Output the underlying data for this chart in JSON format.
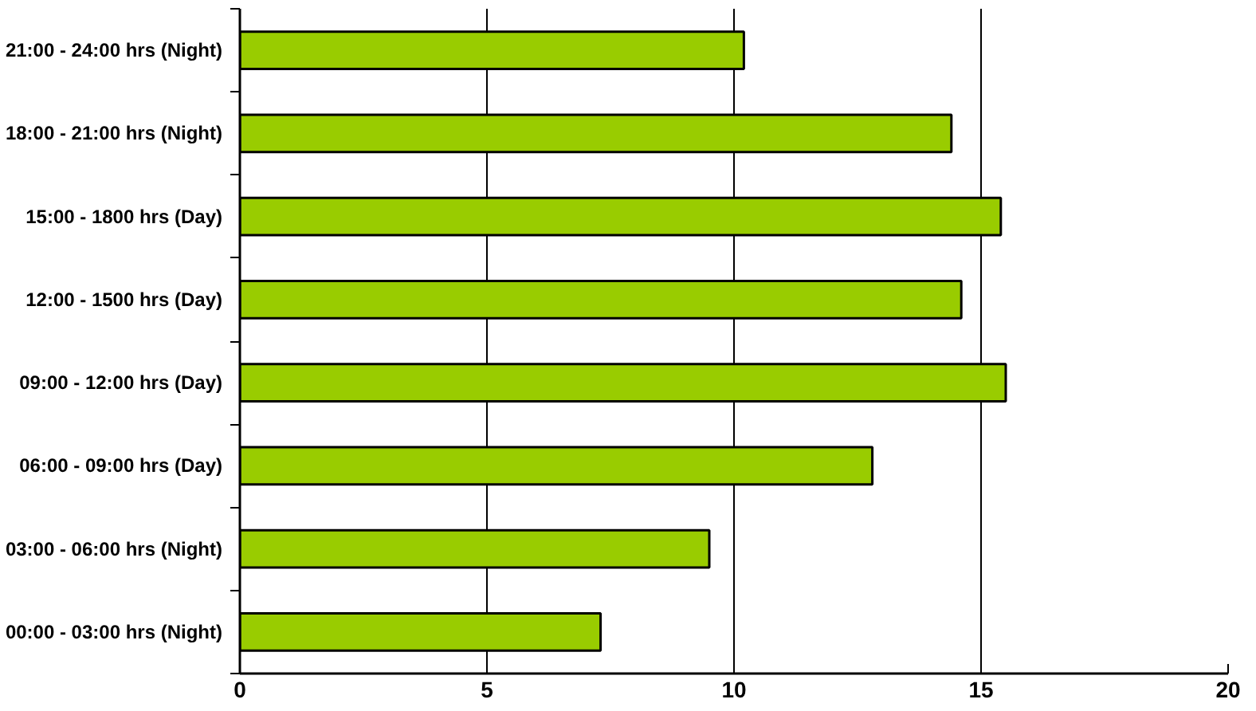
{
  "chart_data": {
    "type": "bar",
    "orientation": "horizontal",
    "categories": [
      "21:00 - 24:00 hrs (Night)",
      "18:00 - 21:00 hrs (Night)",
      "15:00 - 1800 hrs (Day)",
      "12:00 - 1500 hrs (Day)",
      "09:00 - 12:00 hrs (Day)",
      "06:00 - 09:00 hrs (Day)",
      "03:00 - 06:00 hrs (Night)",
      "00:00 - 03:00 hrs (Night)"
    ],
    "values": [
      10.2,
      14.4,
      15.4,
      14.6,
      15.5,
      12.8,
      9.5,
      7.3
    ],
    "color": "#99cc00",
    "xlim": [
      0,
      20
    ],
    "xticks": [
      0,
      5,
      10,
      15,
      20
    ],
    "grid": "x"
  }
}
